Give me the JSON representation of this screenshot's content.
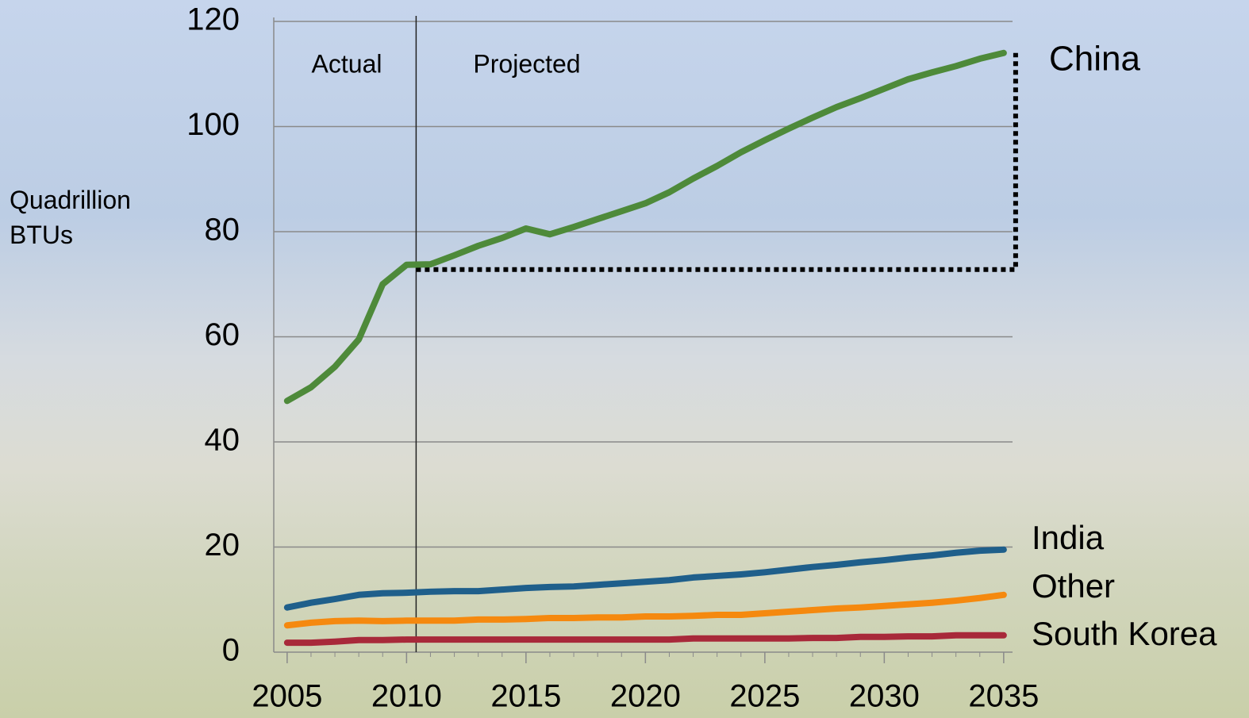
{
  "chart_data": {
    "type": "line",
    "ylabel": "Quadrillion BTUs",
    "annotations": [
      "Actual",
      "Projected"
    ],
    "divider_x": 2010.4,
    "projection_bracket": {
      "x": [
        2010.4,
        2035.5
      ],
      "y": [
        72.8,
        114
      ]
    },
    "x": [
      2005,
      2006,
      2007,
      2008,
      2009,
      2010,
      2011,
      2012,
      2013,
      2014,
      2015,
      2016,
      2017,
      2018,
      2019,
      2020,
      2021,
      2022,
      2023,
      2024,
      2025,
      2026,
      2027,
      2028,
      2029,
      2030,
      2031,
      2032,
      2033,
      2034,
      2035
    ],
    "xlim": [
      2004.44,
      2035.37
    ],
    "xticks": [
      2005,
      2010,
      2015,
      2020,
      2025,
      2030,
      2035
    ],
    "ylim": [
      0,
      120
    ],
    "yticks": [
      0,
      20,
      40,
      60,
      80,
      100,
      120
    ],
    "grid": true,
    "series": [
      {
        "name": "China",
        "color": "#4e8a3a",
        "values": [
          47.8,
          50.4,
          54.3,
          59.5,
          70,
          73.7,
          73.8,
          75.5,
          77.3,
          78.8,
          80.6,
          79.5,
          80.9,
          82.4,
          83.9,
          85.4,
          87.5,
          90.1,
          92.5,
          95.1,
          97.4,
          99.6,
          101.7,
          103.7,
          105.4,
          107.2,
          109,
          110.3,
          111.5,
          112.9,
          114
        ]
      },
      {
        "name": "India",
        "color": "#1f5f8b",
        "values": [
          8.5,
          9.4,
          10.1,
          10.9,
          11.2,
          11.3,
          11.5,
          11.6,
          11.6,
          11.9,
          12.2,
          12.4,
          12.5,
          12.8,
          13.1,
          13.4,
          13.7,
          14.2,
          14.5,
          14.8,
          15.2,
          15.7,
          16.2,
          16.6,
          17.1,
          17.5,
          18,
          18.4,
          18.9,
          19.3,
          19.5
        ]
      },
      {
        "name": "Other",
        "color": "#f5890f",
        "values": [
          5.1,
          5.6,
          5.9,
          6,
          5.9,
          6,
          6,
          6,
          6.2,
          6.2,
          6.3,
          6.5,
          6.5,
          6.6,
          6.6,
          6.8,
          6.8,
          6.9,
          7.1,
          7.1,
          7.4,
          7.7,
          8,
          8.3,
          8.5,
          8.8,
          9.1,
          9.4,
          9.8,
          10.3,
          10.9
        ]
      },
      {
        "name": "South Korea",
        "color": "#a8293a",
        "values": [
          1.8,
          1.8,
          2,
          2.3,
          2.3,
          2.4,
          2.4,
          2.4,
          2.4,
          2.4,
          2.4,
          2.4,
          2.4,
          2.4,
          2.4,
          2.4,
          2.4,
          2.6,
          2.6,
          2.6,
          2.6,
          2.6,
          2.7,
          2.7,
          2.9,
          2.9,
          3,
          3,
          3.2,
          3.2,
          3.2
        ]
      }
    ]
  }
}
